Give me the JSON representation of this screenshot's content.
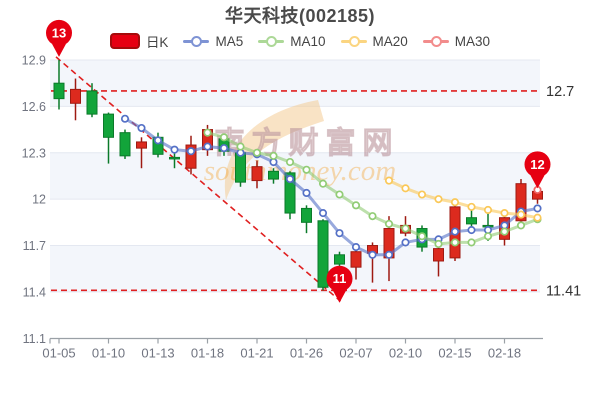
{
  "title": "华天科技(002185)",
  "legend": {
    "items": [
      {
        "label": "日K",
        "type": "candle",
        "color": "#e60012",
        "border": "#a50b0b"
      },
      {
        "label": "MA5",
        "type": "line",
        "color": "#5470c6"
      },
      {
        "label": "MA10",
        "type": "line",
        "color": "#91cc75"
      },
      {
        "label": "MA20",
        "type": "line",
        "color": "#fac858"
      },
      {
        "label": "MA30",
        "type": "line",
        "color": "#ee6666"
      }
    ]
  },
  "watermark": {
    "line1": "南方财富网",
    "line2": "southmoney.com"
  },
  "chart_data": {
    "type": "candlestick",
    "title": "华天科技(002185)",
    "x_tick_labels": [
      "01-05",
      "01-10",
      "01-13",
      "01-18",
      "01-21",
      "01-26",
      "02-07",
      "02-10",
      "02-15",
      "02-18"
    ],
    "x_label_every": 3,
    "num_candles": 30,
    "ylim": [
      11.1,
      12.9
    ],
    "y_ticks": [
      "12.9",
      "12.6",
      "12.3",
      "12",
      "11.7",
      "11.4",
      "11.1"
    ],
    "grid_bands": true,
    "candles": [
      {
        "o": 12.75,
        "h": 12.9,
        "l": 12.58,
        "c": 12.65
      },
      {
        "o": 12.62,
        "h": 12.78,
        "l": 12.51,
        "c": 12.71
      },
      {
        "o": 12.7,
        "h": 12.75,
        "l": 12.53,
        "c": 12.55
      },
      {
        "o": 12.55,
        "h": 12.56,
        "l": 12.23,
        "c": 12.4
      },
      {
        "o": 12.43,
        "h": 12.45,
        "l": 12.26,
        "c": 12.28
      },
      {
        "o": 12.33,
        "h": 12.4,
        "l": 12.2,
        "c": 12.37
      },
      {
        "o": 12.4,
        "h": 12.43,
        "l": 12.27,
        "c": 12.29
      },
      {
        "o": 12.27,
        "h": 12.32,
        "l": 12.2,
        "c": 12.26
      },
      {
        "o": 12.2,
        "h": 12.41,
        "l": 12.16,
        "c": 12.35
      },
      {
        "o": 12.32,
        "h": 12.48,
        "l": 12.28,
        "c": 12.45
      },
      {
        "o": 12.39,
        "h": 12.42,
        "l": 12.28,
        "c": 12.31
      },
      {
        "o": 12.3,
        "h": 12.33,
        "l": 12.08,
        "c": 12.11
      },
      {
        "o": 12.12,
        "h": 12.25,
        "l": 12.07,
        "c": 12.21
      },
      {
        "o": 12.18,
        "h": 12.2,
        "l": 12.1,
        "c": 12.13
      },
      {
        "o": 12.17,
        "h": 12.18,
        "l": 11.87,
        "c": 11.91
      },
      {
        "o": 11.94,
        "h": 11.96,
        "l": 11.78,
        "c": 11.85
      },
      {
        "o": 11.86,
        "h": 11.87,
        "l": 11.41,
        "c": 11.43
      },
      {
        "o": 11.64,
        "h": 11.66,
        "l": 11.48,
        "c": 11.58
      },
      {
        "o": 11.56,
        "h": 11.7,
        "l": 11.48,
        "c": 11.66
      },
      {
        "o": 11.65,
        "h": 11.72,
        "l": 11.46,
        "c": 11.7
      },
      {
        "o": 11.62,
        "h": 11.89,
        "l": 11.47,
        "c": 11.81
      },
      {
        "o": 11.78,
        "h": 11.89,
        "l": 11.76,
        "c": 11.83
      },
      {
        "o": 11.81,
        "h": 11.83,
        "l": 11.66,
        "c": 11.69
      },
      {
        "o": 11.6,
        "h": 11.7,
        "l": 11.5,
        "c": 11.68
      },
      {
        "o": 11.62,
        "h": 11.97,
        "l": 11.6,
        "c": 11.95
      },
      {
        "o": 11.88,
        "h": 11.95,
        "l": 11.78,
        "c": 11.84
      },
      {
        "o": 11.83,
        "h": 11.92,
        "l": 11.73,
        "c": 11.82
      },
      {
        "o": 11.74,
        "h": 11.9,
        "l": 11.7,
        "c": 11.88
      },
      {
        "o": 11.86,
        "h": 12.13,
        "l": 11.84,
        "c": 12.1
      },
      {
        "o": 12.0,
        "h": 12.1,
        "l": 11.97,
        "c": 12.05
      }
    ],
    "series": [
      {
        "name": "MA5",
        "start": 4,
        "color": "#5470c6",
        "values": [
          12.52,
          12.46,
          12.38,
          12.32,
          12.31,
          12.34,
          12.33,
          12.3,
          12.29,
          12.24,
          12.13,
          12.04,
          11.91,
          11.78,
          11.69,
          11.64,
          11.64,
          11.72,
          11.74,
          11.74,
          11.79,
          11.8,
          11.8,
          11.83,
          11.92,
          11.94
        ]
      },
      {
        "name": "MA10",
        "start": 9,
        "color": "#91cc75",
        "values": [
          12.43,
          12.4,
          12.34,
          12.3,
          12.28,
          12.24,
          12.19,
          12.1,
          12.03,
          11.96,
          11.89,
          11.84,
          11.81,
          11.76,
          11.71,
          11.72,
          11.72,
          11.76,
          11.79,
          11.83,
          11.87
        ]
      },
      {
        "name": "MA20",
        "start": 20,
        "color": "#fac858",
        "values": [
          12.12,
          12.07,
          12.03,
          12.0,
          11.98,
          11.95,
          11.93,
          11.91,
          11.9,
          11.88
        ]
      },
      {
        "name": "MA30",
        "start": 29,
        "color": "#ee6666",
        "values": [
          12.06
        ]
      }
    ],
    "hlines": [
      {
        "value": 12.7,
        "label": "12.7"
      },
      {
        "value": 11.41,
        "label": "11.41"
      }
    ],
    "trendline": {
      "x1_index": 0,
      "y1_value": 12.92,
      "x2_index": 17,
      "y2_value": 11.34
    },
    "markers": [
      {
        "label": "13",
        "x_index": 0,
        "tip_value": 12.92
      },
      {
        "label": "11",
        "x_index": 17,
        "tip_value": 11.33
      },
      {
        "label": "12",
        "x_index": 29,
        "tip_value": 12.07
      }
    ],
    "colors": {
      "up_fill": "#dc2a1e",
      "up_border": "#9e1a12",
      "down_fill": "#12a43a",
      "down_border": "#0b7a2a",
      "balloon": "#e60012",
      "dashed": "#e02020",
      "band": "#f3f6fb",
      "grid": "#e4e8f1",
      "axis_line": "#9aa0a6",
      "axis_text": "#707480",
      "side_label": "#333333"
    }
  }
}
